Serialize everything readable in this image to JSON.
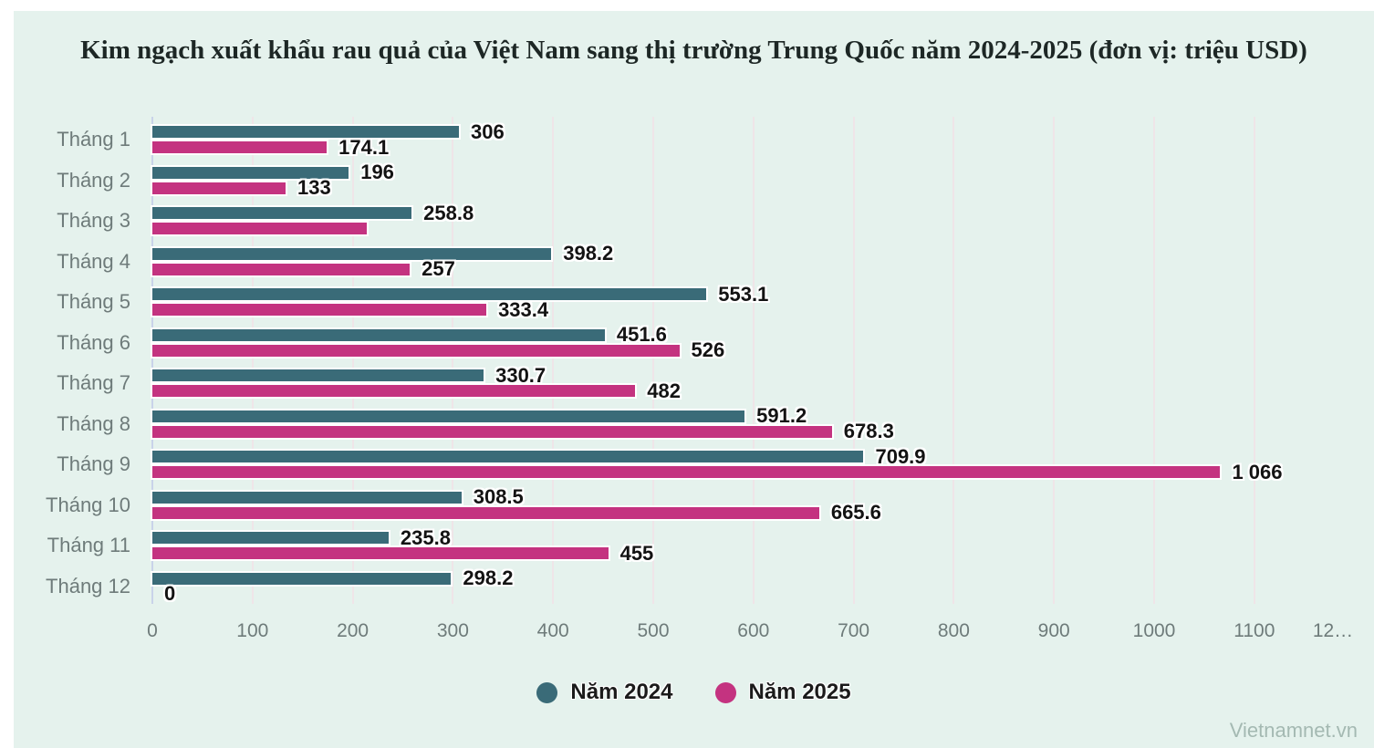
{
  "title": "Kim ngạch xuất khẩu rau quả của Việt Nam sang thị trường Trung Quốc năm 2024-2025 (đơn vị: triệu USD)",
  "watermark": "Vietnamnet.vn",
  "colors": {
    "background": "#e5f2ed",
    "series_2024": "#3a6b78",
    "series_2025": "#c43380",
    "axis_line": "#c9d3e9",
    "gridline": "#efe5e8",
    "tick_text": "#6e7b7a",
    "title_text": "#1d2725",
    "data_label_text": "#131313",
    "watermark_text": "#a4b9b2"
  },
  "legend": {
    "items": [
      {
        "label": "Năm 2024",
        "color": "#3a6b78"
      },
      {
        "label": "Năm 2025",
        "color": "#c43380"
      }
    ]
  },
  "chart_data": {
    "type": "bar",
    "orientation": "horizontal",
    "title": "Kim ngạch xuất khẩu rau quả của Việt Nam sang thị trường Trung Quốc năm 2024-2025 (đơn vị: triệu USD)",
    "unit": "triệu USD",
    "grid": true,
    "legend_position": "bottom",
    "categories": [
      "Tháng 1",
      "Tháng 2",
      "Tháng 3",
      "Tháng 4",
      "Tháng 5",
      "Tháng 6",
      "Tháng 7",
      "Tháng 8",
      "Tháng 9",
      "Tháng 10",
      "Tháng 11",
      "Tháng 12"
    ],
    "series": [
      {
        "name": "Năm 2024",
        "color": "#3a6b78",
        "values": [
          306,
          196,
          258.8,
          398.2,
          553.1,
          451.6,
          330.7,
          591.2,
          709.9,
          308.5,
          235.8,
          298.2
        ],
        "labels": [
          "306",
          "196",
          "258.8",
          "398.2",
          "553.1",
          "451.6",
          "330.7",
          "591.2",
          "709.9",
          "308.5",
          "235.8",
          "298.2"
        ]
      },
      {
        "name": "Năm 2025",
        "color": "#c43380",
        "values": [
          174.1,
          133,
          214,
          257,
          333.4,
          526,
          482,
          678.3,
          1066,
          665.6,
          455,
          0
        ],
        "labels": [
          "174.1",
          "133",
          "",
          "257",
          "333.4",
          "526",
          "482",
          "678.3",
          "1 066",
          "665.6",
          "455",
          "0"
        ]
      }
    ],
    "x_axis": {
      "range": [
        0,
        1200
      ],
      "ticks": [
        0,
        100,
        200,
        300,
        400,
        500,
        600,
        700,
        800,
        900,
        1000,
        1100,
        1200
      ],
      "tick_labels": [
        "0",
        "100",
        "200",
        "300",
        "400",
        "500",
        "600",
        "700",
        "800",
        "900",
        "1000",
        "1100",
        "12…"
      ]
    }
  }
}
